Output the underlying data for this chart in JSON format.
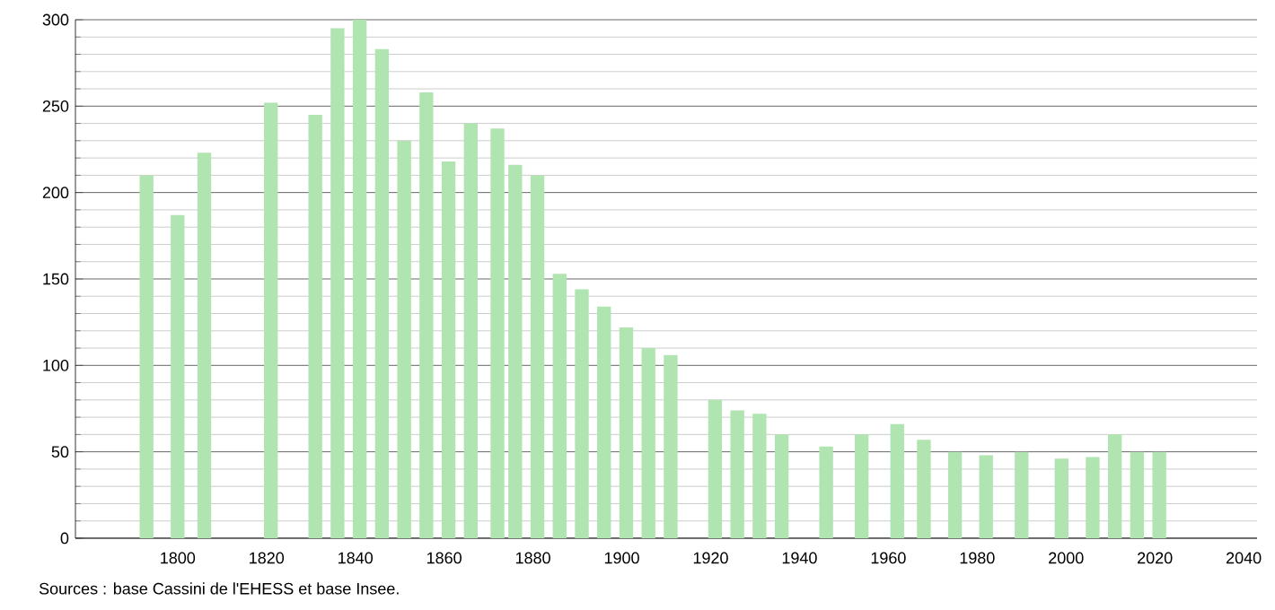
{
  "chart_data": {
    "type": "bar",
    "x": [
      1793,
      1800,
      1806,
      1821,
      1831,
      1836,
      1841,
      1846,
      1851,
      1856,
      1861,
      1866,
      1872,
      1876,
      1881,
      1886,
      1891,
      1896,
      1901,
      1906,
      1911,
      1921,
      1926,
      1931,
      1936,
      1946,
      1954,
      1962,
      1968,
      1975,
      1982,
      1990,
      1999,
      2006,
      2011,
      2016,
      2021
    ],
    "values": [
      210,
      187,
      223,
      252,
      245,
      295,
      300,
      283,
      230,
      258,
      218,
      240,
      237,
      216,
      210,
      153,
      144,
      134,
      122,
      110,
      106,
      80,
      74,
      72,
      60,
      53,
      60,
      66,
      57,
      50,
      48,
      50,
      46,
      47,
      60,
      50,
      50
    ],
    "color": "#b0e4b0",
    "xlim": [
      1777,
      2043
    ],
    "xticks": [
      1800,
      1820,
      1840,
      1860,
      1880,
      1900,
      1920,
      1940,
      1960,
      1980,
      2000,
      2020,
      2040
    ],
    "ylim": [
      0,
      300
    ],
    "yticks": [
      0,
      50,
      100,
      150,
      200,
      250,
      300
    ],
    "grid": "y",
    "annotations": [
      "Sources : base Cassini de l'EHESS et base Insee."
    ]
  }
}
